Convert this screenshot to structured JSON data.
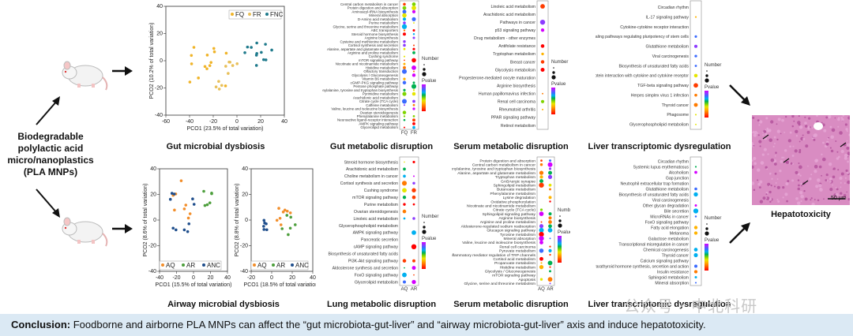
{
  "left_label": {
    "line1": "Biodegradable",
    "line2": "polylactic acid",
    "line3": "micro/nanoplastics",
    "line4": "(PLA MNPs)"
  },
  "titles": {
    "gut_microbial": "Gut microbial dysbiosis",
    "gut_metabolic": "Gut metabolic disruption",
    "serum_metabolic_top": "Serum metabolic disruption",
    "liver_top": "Liver transcriptomic dysregulation",
    "airway_microbial": "Airway microbial dysbiosis",
    "lung_metabolic": "Lung metabolic disruption",
    "serum_metabolic_bottom": "Serum metabolic disruption",
    "liver_bottom": "Liver transcriptomic dysregulation",
    "hepatotoxicity": "Hepatotoxicity"
  },
  "pcoa_top": {
    "legend": [
      "FQ",
      "FR",
      "FNC"
    ],
    "xlabel": "PCO1 (23.5% of total variation)",
    "ylabel": "PCO2 (10.2% of total variation)",
    "xticks": [
      "-60",
      "-40",
      "-20",
      "0",
      "20",
      "40"
    ],
    "yticks": [
      "-40",
      "-20",
      "0",
      "20",
      "40"
    ]
  },
  "pcoa_bottom_left": {
    "legend": [
      "AQ",
      "AR",
      "ANC"
    ],
    "xlabel": "PCO1 (15.5% of total variation)",
    "ylabel": "PCO2 (8.6% of total variation)",
    "xticks": [
      "-40",
      "-20",
      "0",
      "20",
      "40"
    ],
    "yticks": [
      "-40",
      "-20",
      "0",
      "20",
      "40"
    ]
  },
  "pcoa_bottom_right": {
    "legend": [
      "AQ",
      "AR",
      "ANC"
    ],
    "xlabel": "PCO1 (18.5% of total variation)",
    "ylabel": "PCO2 (8.8% of total variation)",
    "xticks": [
      "-20",
      "0",
      "20",
      "40"
    ],
    "yticks": [
      "-40",
      "-20",
      "0",
      "20",
      "40"
    ]
  },
  "dot_axes": {
    "gut": [
      "FQ",
      "FR"
    ],
    "lung": [
      "AQ",
      "AR"
    ],
    "serum_bottom": [
      "AQ",
      "AR"
    ]
  },
  "legend_labels": {
    "number": "Number",
    "pvalue": "Pvalue"
  },
  "gut_metabolic_terms": [
    "Central carbon metabolism in cancer",
    "Protein digestion and absorption",
    "Aminoacyl-tRNA biosynthesis",
    "Mineral absorption",
    "D-Amino acid metabolism",
    "Purine metabolism",
    "Glycine, serine and threonine metabolism",
    "ABC transporters",
    "Steroid hormone biosynthesis",
    "Arginine biosynthesis",
    "Cysteine and methionine metabolism",
    "Cortisol synthesis and secretion",
    "Alanine, aspartate and glutamate metabolism",
    "Arginine and proline metabolism",
    "Cushing syndrome",
    "mTOR signaling pathway",
    "Nicotinate and nicotinamide metabolism",
    "Histidine metabolism",
    "Olfactory transduction",
    "Glycolysis / Gluconeogenesis",
    "Vitamin B6 metabolism",
    "cGMP-PKG signaling pathway",
    "Pentose phosphate pathway",
    "Phenylalanine, tyrosine and tryptophan biosynthesis",
    "Pyrimidine metabolism",
    "Arachidonic acid metabolism",
    "Citrate cycle (TCA cycle)",
    "Caffeine metabolism",
    "Valine, leucine and isoleucine biosynthesis",
    "Ovarian steroidogenesis",
    "Phenylalanine metabolism",
    "Neuroactive ligand-receptor interaction",
    "AMPK signaling pathway",
    "Glycerolipid metabolism"
  ],
  "serum_top_terms": [
    "Linoleic acid metabolism",
    "Arachidonic acid metabolism",
    "Pathways in cancer",
    "p53 signaling pathway",
    "Drug metabolism - other enzymes",
    "Antifolate resistance",
    "Tryptophan metabolism",
    "Breast cancer",
    "Glycolysis metabolism",
    "Progesterone-mediated oocyte maturation",
    "Arginine biosynthesis",
    "Human papillomavirus infection",
    "Renal cell carcinoma",
    "Rheumatoid arthritis",
    "PPAR signaling pathway",
    "Retinol metabolism"
  ],
  "liver_top_terms": [
    "Circadian rhythm",
    "IL-17 signaling pathway",
    "Cytokine-cytokine receptor interaction",
    "Signaling pathways regulating pluripotency of stem cells",
    "Glutathione metabolism",
    "Viral carcinogenesis",
    "Biosynthesis of unsaturated fatty acids",
    "Viral protein interaction with cytokine and cytokine receptor",
    "TGF-beta signaling pathway",
    "Herpes simplex virus 1 infection",
    "Thyroid cancer",
    "Phagosome",
    "Glycerophospholipid metabolism"
  ],
  "lung_terms": [
    "Steroid hormone biosynthesis",
    "Arachidonic acid metabolism",
    "Choline metabolism in cancer",
    "Cortisol synthesis and secretion",
    "Cushing syndrome",
    "mTOR signaling pathway",
    "Purine metabolism",
    "Ovarian steroidogenesis",
    "Linoleic acid metabolism",
    "Glycerophospholipid metabolism",
    "AMPK signaling pathway",
    "Pancreatic secretion",
    "cAMP signaling pathway",
    "Biosynthesis of unsaturated fatty acids",
    "PI3K-Akt signaling pathway",
    "Aldosterone synthesis and secretion",
    "FoxO signaling pathway",
    "Glycerolipid metabolism"
  ],
  "serum_bottom_terms": [
    "Protein digestion and absorption",
    "Central carbon metabolism in cancer",
    "Phenylalanine, tyrosine and tryptophan biosynthesis",
    "Alanine, aspartate and glutamate metabolism",
    "Tryptophan metabolism",
    "GABAergic synapse",
    "Sphingolipid metabolism",
    "Butanoate metabolism",
    "Phenylalanine metabolism",
    "Lysine degradation",
    "Oxidative phosphorylation",
    "Nicotinate and nicotinamide metabolism",
    "Citrate cycle (TCA cycle)",
    "Sphingolipid signaling pathway",
    "Arginine biosynthesis",
    "Arginine and proline metabolism",
    "Aldosterone-regulated sodium reabsorption",
    "Glucagon signaling pathway",
    "Tyrosine metabolism",
    "Mineral absorption",
    "Valine, leucine and isoleucine biosynthesis",
    "Renal cell carcinoma",
    "Pyruvate metabolism",
    "Inflammatory mediator regulation of TRP channels",
    "Cortisol acid metabolism",
    "Propanoate metabolism",
    "Histidine metabolism",
    "Glycolysis / Gluconeogenesis",
    "mTOR signaling pathway",
    "Apoptosis",
    "Glycine, serine and threonine metabolism"
  ],
  "liver_bottom_terms": [
    "Circadian rhythm",
    "Systemic lupus erythematosus",
    "Alcoholism",
    "Gap junction",
    "Neutrophil extracellular trap formation",
    "Glutathione metabolism",
    "Biosynthesis of unsaturated fatty acids",
    "Viral carcinogenesis",
    "Other glycan degradation",
    "Bile secretion",
    "MicroRNAs in cancer",
    "FoxO signaling pathway",
    "Fatty acid elongation",
    "Melanoma",
    "Galactose metabolism",
    "Transcriptional misregulation in cancer",
    "Chemical carcinogenesis",
    "Thyroid cancer",
    "Calcium signaling pathway",
    "Parathyroid hormone synthesis, secretion and action",
    "Insulin resistance",
    "Sphingoid metabolism",
    "Mineral absorption"
  ],
  "histology": {
    "scale": "50 μm"
  },
  "conclusion": {
    "label": "Conclusion:",
    "text": " Foodborne and airborne PLA MNPs can affect the “gut microbiota-gut-liver” and “airway microbiota-gut-liver” axis and induce hepatotoxicity."
  },
  "watermark": "公众号 · 中北科研",
  "colors": {
    "FQ": "#f0b429",
    "FR": "#e8c05a",
    "FNC": "#1f7a8c",
    "AQ": "#f28e2b",
    "AR": "#4e9f3d",
    "ANC": "#1f4e8c",
    "bar": "#dbe9f4"
  }
}
